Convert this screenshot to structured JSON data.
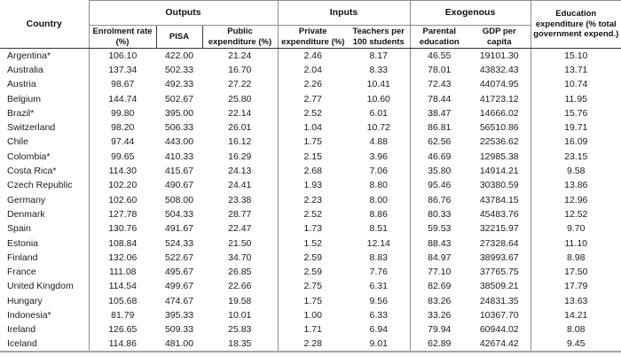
{
  "table": {
    "country_header": "Country",
    "groups": [
      {
        "label": "Outputs",
        "columns": [
          "Enrolment rate (%)",
          "PISA",
          "Public expenditure (%)"
        ]
      },
      {
        "label": "Inputs",
        "columns": [
          "Private expenditure (%)",
          "Teachers per 100 students"
        ]
      },
      {
        "label": "Exogenous",
        "columns": [
          "Parental education",
          "GDP per capita"
        ]
      }
    ],
    "education_header": "Education expenditure (% total government expend.)",
    "education_header_lines": [
      "Education",
      "expenditure (% total",
      "government expend.)"
    ],
    "column_keys": [
      "enrolment-rate",
      "pisa",
      "public-expenditure",
      "private-expenditure",
      "teachers-per-100",
      "parental-education",
      "gdp-per-capita",
      "education-expenditure"
    ],
    "rows": [
      {
        "country": "Argentina*",
        "values": [
          "106.10",
          "422.00",
          "21.24",
          "2.46",
          "8.17",
          "46.55",
          "19101.30",
          "15.10"
        ]
      },
      {
        "country": "Australia",
        "values": [
          "137.34",
          "502.33",
          "16.70",
          "2.04",
          "8.33",
          "78.01",
          "43832.43",
          "13.71"
        ]
      },
      {
        "country": "Austria",
        "values": [
          "98.67",
          "492.33",
          "27.22",
          "2.26",
          "10.41",
          "72.43",
          "44074.95",
          "10.74"
        ]
      },
      {
        "country": "Belgium",
        "values": [
          "144.74",
          "502.67",
          "25.80",
          "2.77",
          "10.60",
          "78.44",
          "41723.12",
          "11.95"
        ]
      },
      {
        "country": "Brazil*",
        "values": [
          "99.80",
          "395.00",
          "22.14",
          "2.52",
          "6.01",
          "38.47",
          "14666.02",
          "15.76"
        ]
      },
      {
        "country": "Switzerland",
        "values": [
          "98.20",
          "506.33",
          "26.01",
          "1.04",
          "10.72",
          "86.81",
          "56510.86",
          "19.71"
        ]
      },
      {
        "country": "Chile",
        "values": [
          "97.44",
          "443.00",
          "16.12",
          "1.75",
          "4.88",
          "62.56",
          "22536.62",
          "16.09"
        ]
      },
      {
        "country": "Colombia*",
        "values": [
          "99.65",
          "410.33",
          "16.29",
          "2.15",
          "3.96",
          "46.69",
          "12985.38",
          "23.15"
        ]
      },
      {
        "country": "Costa Rica*",
        "values": [
          "114.30",
          "415.67",
          "24.13",
          "2.68",
          "7.06",
          "35.80",
          "14914.21",
          "9.58"
        ]
      },
      {
        "country": "Czech Republic",
        "values": [
          "102.20",
          "490.67",
          "24.41",
          "1.93",
          "8.80",
          "95.46",
          "30380.59",
          "13.86"
        ]
      },
      {
        "country": "Germany",
        "values": [
          "102.60",
          "508.00",
          "23.38",
          "2.23",
          "8.00",
          "86.76",
          "43784.15",
          "12.96"
        ]
      },
      {
        "country": "Denmark",
        "values": [
          "127.78",
          "504.33",
          "28.77",
          "2.52",
          "8.86",
          "80.33",
          "45483.76",
          "12.52"
        ]
      },
      {
        "country": "Spain",
        "values": [
          "130.76",
          "491.67",
          "22.47",
          "1.73",
          "8.51",
          "59.53",
          "32215.97",
          "9.70"
        ]
      },
      {
        "country": "Estonia",
        "values": [
          "108.84",
          "524.33",
          "21.50",
          "1.52",
          "12.14",
          "88.43",
          "27328.64",
          "11.10"
        ]
      },
      {
        "country": "Finland",
        "values": [
          "132.06",
          "522.67",
          "34.70",
          "2.59",
          "8.83",
          "84.97",
          "38993.67",
          "8.98"
        ]
      },
      {
        "country": "France",
        "values": [
          "111.08",
          "495.67",
          "26.85",
          "2.59",
          "7.76",
          "77.10",
          "37765.75",
          "17.50"
        ]
      },
      {
        "country": "United Kingdom",
        "values": [
          "114.54",
          "499.67",
          "22.66",
          "2.75",
          "6.31",
          "82.69",
          "38509.21",
          "17.79"
        ]
      },
      {
        "country": "Hungary",
        "values": [
          "105.68",
          "474.67",
          "19.58",
          "1.75",
          "9.56",
          "83.26",
          "24831.35",
          "13.63"
        ]
      },
      {
        "country": "Indonesia*",
        "values": [
          "81.79",
          "395.33",
          "10.01",
          "1.00",
          "6.33",
          "33.26",
          "10367.70",
          "14.21"
        ]
      },
      {
        "country": "Ireland",
        "values": [
          "126.65",
          "509.33",
          "25.83",
          "1.71",
          "6.94",
          "79.94",
          "60944.02",
          "8.08"
        ]
      },
      {
        "country": "Iceland",
        "values": [
          "114.86",
          "481.00",
          "18.35",
          "2.28",
          "9.01",
          "62.89",
          "42674.42",
          "9.45"
        ]
      }
    ]
  }
}
